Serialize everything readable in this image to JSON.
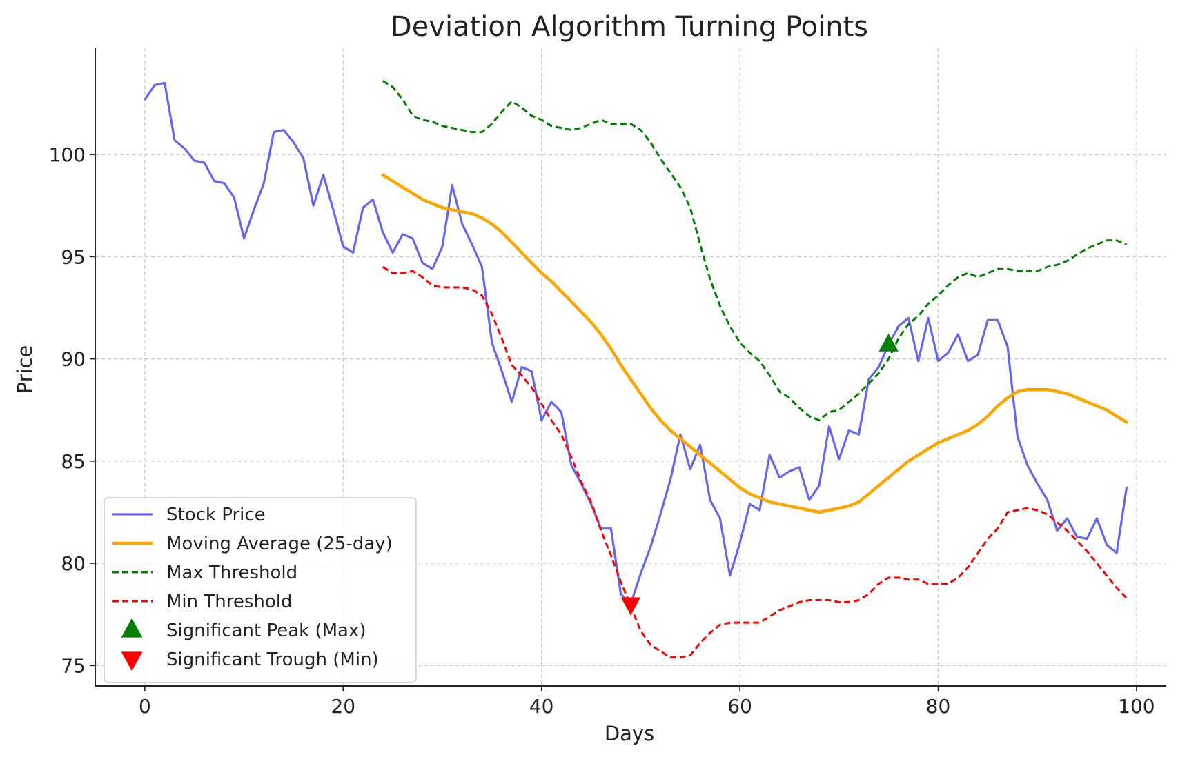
{
  "chart_data": {
    "type": "line",
    "title": "Deviation Algorithm Turning Points",
    "xlabel": "Days",
    "ylabel": "Price",
    "xlim": [
      -5,
      103
    ],
    "ylim": [
      74,
      105.2
    ],
    "xticks": [
      0,
      20,
      40,
      60,
      80,
      100
    ],
    "yticks": [
      75,
      80,
      85,
      90,
      95,
      100
    ],
    "grid": true,
    "legend_position": "lower-left",
    "series": [
      {
        "name": "Stock Price",
        "color": "#6666ee",
        "style": "solid",
        "x": [
          0,
          1,
          2,
          3,
          4,
          5,
          6,
          7,
          8,
          9,
          10,
          11,
          12,
          13,
          14,
          15,
          16,
          17,
          18,
          19,
          20,
          21,
          22,
          23,
          24,
          25,
          26,
          27,
          28,
          29,
          30,
          31,
          32,
          33,
          34,
          35,
          36,
          37,
          38,
          39,
          40,
          41,
          42,
          43,
          44,
          45,
          46,
          47,
          48,
          49,
          50,
          51,
          52,
          53,
          54,
          55,
          56,
          57,
          58,
          59,
          60,
          61,
          62,
          63,
          64,
          65,
          66,
          67,
          68,
          69,
          70,
          71,
          72,
          73,
          74,
          75,
          76,
          77,
          78,
          79,
          80,
          81,
          82,
          83,
          84,
          85,
          86,
          87,
          88,
          89,
          90,
          91,
          92,
          93,
          94,
          95,
          96,
          97,
          98,
          99
        ],
        "y": [
          102.7,
          103.4,
          103.5,
          100.7,
          100.3,
          99.7,
          99.6,
          98.7,
          98.6,
          97.9,
          95.9,
          97.3,
          98.6,
          101.1,
          101.2,
          100.6,
          99.8,
          97.5,
          99.0,
          97.3,
          95.5,
          95.2,
          97.4,
          97.8,
          96.2,
          95.2,
          96.1,
          95.9,
          94.7,
          94.4,
          95.5,
          98.5,
          96.6,
          95.6,
          94.5,
          90.8,
          89.4,
          87.9,
          89.6,
          89.4,
          87.0,
          87.9,
          87.4,
          84.8,
          83.9,
          82.9,
          81.7,
          81.7,
          78.5,
          78.0,
          79.5,
          80.8,
          82.4,
          84.1,
          86.3,
          84.6,
          85.8,
          83.1,
          82.2,
          79.4,
          81.0,
          82.9,
          82.6,
          85.3,
          84.2,
          84.5,
          84.7,
          83.1,
          83.8,
          86.7,
          85.1,
          86.5,
          86.3,
          89.0,
          89.6,
          90.7,
          91.6,
          92.0,
          89.9,
          92.0,
          89.9,
          90.3,
          91.2,
          89.9,
          90.2,
          91.9,
          91.9,
          90.6,
          86.2,
          84.8,
          83.9,
          83.1,
          81.6,
          82.2,
          81.3,
          81.2,
          82.2,
          80.9,
          80.5,
          83.7
        ]
      },
      {
        "name": "Moving Average (25-day)",
        "color": "#ffa500",
        "style": "solid",
        "x": [
          24,
          25,
          26,
          27,
          28,
          29,
          30,
          31,
          32,
          33,
          34,
          35,
          36,
          37,
          38,
          39,
          40,
          41,
          42,
          43,
          44,
          45,
          46,
          47,
          48,
          49,
          50,
          51,
          52,
          53,
          54,
          55,
          56,
          57,
          58,
          59,
          60,
          61,
          62,
          63,
          64,
          65,
          66,
          67,
          68,
          69,
          70,
          71,
          72,
          73,
          74,
          75,
          76,
          77,
          78,
          79,
          80,
          81,
          82,
          83,
          84,
          85,
          86,
          87,
          88,
          89,
          90,
          91,
          92,
          93,
          94,
          95,
          96,
          97,
          98,
          99
        ],
        "y": [
          99.0,
          98.7,
          98.4,
          98.1,
          97.8,
          97.6,
          97.4,
          97.3,
          97.2,
          97.1,
          96.9,
          96.6,
          96.2,
          95.7,
          95.2,
          94.7,
          94.2,
          93.8,
          93.3,
          92.8,
          92.3,
          91.8,
          91.2,
          90.5,
          89.7,
          89.0,
          88.3,
          87.6,
          87.0,
          86.5,
          86.1,
          85.7,
          85.3,
          84.9,
          84.5,
          84.1,
          83.7,
          83.4,
          83.2,
          83.0,
          82.9,
          82.8,
          82.7,
          82.6,
          82.5,
          82.6,
          82.7,
          82.8,
          83.0,
          83.4,
          83.8,
          84.2,
          84.6,
          85.0,
          85.3,
          85.6,
          85.9,
          86.1,
          86.3,
          86.5,
          86.8,
          87.2,
          87.7,
          88.1,
          88.4,
          88.5,
          88.5,
          88.5,
          88.4,
          88.3,
          88.1,
          87.9,
          87.7,
          87.5,
          87.2,
          86.9
        ]
      },
      {
        "name": "Max Threshold",
        "color": "#008000",
        "style": "dashed",
        "x": [
          24,
          25,
          26,
          27,
          28,
          29,
          30,
          31,
          32,
          33,
          34,
          35,
          36,
          37,
          38,
          39,
          40,
          41,
          42,
          43,
          44,
          45,
          46,
          47,
          48,
          49,
          50,
          51,
          52,
          53,
          54,
          55,
          56,
          57,
          58,
          59,
          60,
          61,
          62,
          63,
          64,
          65,
          66,
          67,
          68,
          69,
          70,
          71,
          72,
          73,
          74,
          75,
          76,
          77,
          78,
          79,
          80,
          81,
          82,
          83,
          84,
          85,
          86,
          87,
          88,
          89,
          90,
          91,
          92,
          93,
          94,
          95,
          96,
          97,
          98,
          99
        ],
        "y": [
          103.6,
          103.3,
          102.7,
          101.9,
          101.7,
          101.6,
          101.4,
          101.3,
          101.2,
          101.1,
          101.1,
          101.5,
          102.1,
          102.6,
          102.3,
          101.9,
          101.7,
          101.4,
          101.3,
          101.2,
          101.3,
          101.5,
          101.7,
          101.5,
          101.5,
          101.5,
          101.2,
          100.6,
          99.8,
          99.1,
          98.4,
          97.4,
          95.6,
          93.9,
          92.6,
          91.6,
          90.8,
          90.3,
          89.9,
          89.2,
          88.4,
          88.1,
          87.6,
          87.2,
          87.0,
          87.4,
          87.5,
          87.9,
          88.3,
          88.8,
          89.3,
          90.0,
          91.0,
          91.7,
          92.1,
          92.7,
          93.1,
          93.6,
          94.0,
          94.2,
          94.0,
          94.2,
          94.4,
          94.4,
          94.3,
          94.3,
          94.3,
          94.5,
          94.6,
          94.8,
          95.1,
          95.4,
          95.6,
          95.8,
          95.8,
          95.6
        ]
      },
      {
        "name": "Min Threshold",
        "color": "#ff0000",
        "style": "dashed",
        "x": [
          24,
          25,
          26,
          27,
          28,
          29,
          30,
          31,
          32,
          33,
          34,
          35,
          36,
          37,
          38,
          39,
          40,
          41,
          42,
          43,
          44,
          45,
          46,
          47,
          48,
          49,
          50,
          51,
          52,
          53,
          54,
          55,
          56,
          57,
          58,
          59,
          60,
          61,
          62,
          63,
          64,
          65,
          66,
          67,
          68,
          69,
          70,
          71,
          72,
          73,
          74,
          75,
          76,
          77,
          78,
          79,
          80,
          81,
          82,
          83,
          84,
          85,
          86,
          87,
          88,
          89,
          90,
          91,
          92,
          93,
          94,
          95,
          96,
          97,
          98,
          99
        ],
        "y": [
          94.5,
          94.2,
          94.2,
          94.3,
          94.0,
          93.6,
          93.5,
          93.5,
          93.5,
          93.4,
          93.1,
          92.2,
          91.0,
          89.7,
          89.2,
          88.6,
          87.8,
          87.0,
          86.3,
          85.2,
          84.0,
          83.0,
          81.6,
          80.4,
          79.1,
          77.9,
          76.7,
          76.0,
          75.7,
          75.4,
          75.4,
          75.5,
          76.1,
          76.6,
          77.0,
          77.1,
          77.1,
          77.1,
          77.1,
          77.4,
          77.7,
          77.9,
          78.1,
          78.2,
          78.2,
          78.2,
          78.1,
          78.1,
          78.2,
          78.5,
          79.0,
          79.3,
          79.3,
          79.2,
          79.2,
          79.0,
          79.0,
          79.0,
          79.3,
          79.8,
          80.5,
          81.2,
          81.7,
          82.5,
          82.6,
          82.7,
          82.6,
          82.4,
          82.0,
          81.6,
          81.1,
          80.6,
          80.0,
          79.4,
          78.8,
          78.3
        ]
      },
      {
        "name": "Significant Peak (Max)",
        "color": "#008000",
        "style": "marker-triangle-up",
        "x": [
          75
        ],
        "y": [
          90.7
        ]
      },
      {
        "name": "Significant Trough (Min)",
        "color": "#ff0000",
        "style": "marker-triangle-down",
        "x": [
          49
        ],
        "y": [
          78.0
        ]
      }
    ]
  }
}
